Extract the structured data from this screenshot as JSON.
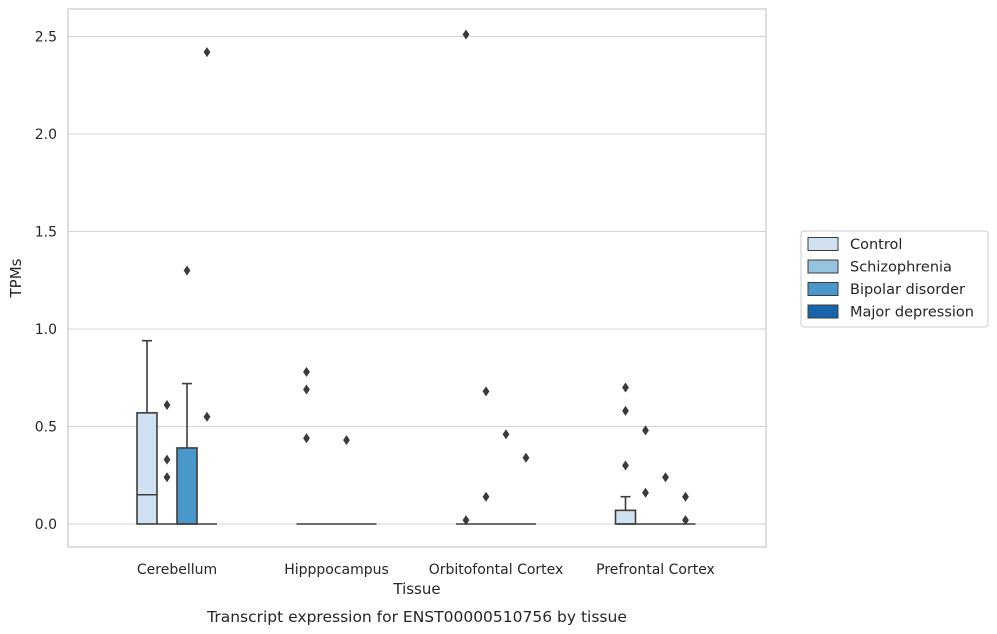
{
  "chart_data": {
    "type": "box",
    "caption": "Transcript expression for ENST00000510756 by tissue",
    "xlabel": "Tissue",
    "ylabel": "TPMs",
    "ylim": [
      -0.12,
      2.64
    ],
    "yticks": [
      "0.0",
      "0.5",
      "1.0",
      "1.5",
      "2.0",
      "2.5"
    ],
    "grid": "horizontal",
    "legend_position": "right",
    "categories": [
      "Cerebellum",
      "Hipppocampus",
      "Orbitofontal Cortex",
      "Prefrontal Cortex"
    ],
    "series": [
      {
        "name": "Control",
        "color": "#d0e1f2",
        "boxes": [
          {
            "q1": 0,
            "median": 0.15,
            "q3": 0.57,
            "whisker_low": 0,
            "whisker_high": 0.94,
            "outliers": []
          },
          {
            "q1": 0,
            "median": 0,
            "q3": 0,
            "whisker_low": 0,
            "whisker_high": 0,
            "outliers": [
              0.78,
              0.69,
              0.44
            ]
          },
          {
            "q1": 0,
            "median": 0,
            "q3": 0,
            "whisker_low": 0,
            "whisker_high": 0,
            "outliers": [
              2.51,
              0.02
            ]
          },
          {
            "q1": 0,
            "median": 0,
            "q3": 0.07,
            "whisker_low": 0,
            "whisker_high": 0.14,
            "outliers": [
              0.7,
              0.58,
              0.3
            ]
          }
        ]
      },
      {
        "name": "Schizophrenia",
        "color": "#94c4df",
        "boxes": [
          {
            "q1": 0,
            "median": 0,
            "q3": 0,
            "whisker_low": 0,
            "whisker_high": 0,
            "outliers": [
              0.61,
              0.33,
              0.24
            ]
          },
          {
            "q1": 0,
            "median": 0,
            "q3": 0,
            "whisker_low": 0,
            "whisker_high": 0,
            "outliers": []
          },
          {
            "q1": 0,
            "median": 0,
            "q3": 0,
            "whisker_low": 0,
            "whisker_high": 0,
            "outliers": [
              0.68,
              0.14
            ]
          },
          {
            "q1": 0,
            "median": 0,
            "q3": 0,
            "whisker_low": 0,
            "whisker_high": 0,
            "outliers": [
              0.48,
              0.16
            ]
          }
        ]
      },
      {
        "name": "Bipolar disorder",
        "color": "#4a98c9",
        "boxes": [
          {
            "q1": 0,
            "median": 0,
            "q3": 0.39,
            "whisker_low": 0,
            "whisker_high": 0.72,
            "outliers": [
              1.3
            ]
          },
          {
            "q1": 0,
            "median": 0,
            "q3": 0,
            "whisker_low": 0,
            "whisker_high": 0,
            "outliers": [
              0.43
            ]
          },
          {
            "q1": 0,
            "median": 0,
            "q3": 0,
            "whisker_low": 0,
            "whisker_high": 0,
            "outliers": [
              0.46
            ]
          },
          {
            "q1": 0,
            "median": 0,
            "q3": 0,
            "whisker_low": 0,
            "whisker_high": 0,
            "outliers": [
              0.24
            ]
          }
        ]
      },
      {
        "name": "Major depression",
        "color": "#1764ab",
        "boxes": [
          {
            "q1": 0,
            "median": 0,
            "q3": 0,
            "whisker_low": 0,
            "whisker_high": 0,
            "outliers": [
              2.42,
              0.55
            ]
          },
          {
            "q1": 0,
            "median": 0,
            "q3": 0,
            "whisker_low": 0,
            "whisker_high": 0,
            "outliers": []
          },
          {
            "q1": 0,
            "median": 0,
            "q3": 0,
            "whisker_low": 0,
            "whisker_high": 0,
            "outliers": [
              0.34
            ]
          },
          {
            "q1": 0,
            "median": 0,
            "q3": 0,
            "whisker_low": 0,
            "whisker_high": 0,
            "outliers": [
              0.14,
              0.02
            ]
          }
        ]
      }
    ]
  }
}
